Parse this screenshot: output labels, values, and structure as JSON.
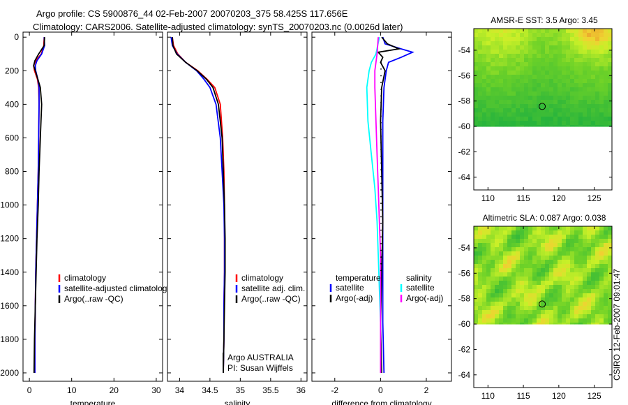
{
  "header": {
    "line1": "Argo profile: CS 5900876_44 02-Feb-2007 20070203_375 58.425S 117.656E",
    "line2": "Climatology: CARS2006. Satellite-adjusted climatology: synTS_20070203.nc (0.0026d later)"
  },
  "footer_stamp": "CSIRO 12-Feb-2007 09:01:47",
  "colors": {
    "clim": "#ff0000",
    "sat": "#0000ff",
    "argo": "#000000",
    "cyan": "#00ffff",
    "magenta": "#ff00ff"
  },
  "chart_data": [
    {
      "type": "line",
      "title": "temperature",
      "xlabel": "temperature",
      "ylabel": "",
      "xlim": [
        -1.5,
        31.5
      ],
      "ylim": [
        2050,
        -30
      ],
      "xticks": [
        0,
        10,
        20,
        30
      ],
      "yticks": [
        0,
        200,
        400,
        600,
        800,
        1000,
        1200,
        1400,
        1600,
        1800,
        2000
      ],
      "series": [
        {
          "name": "climatology",
          "color": "#ff0000",
          "x": [
            3.5,
            3.4,
            2.8,
            1.5,
            1.0,
            1.2,
            1.9,
            2.2,
            2.3,
            2.2,
            2.1,
            1.9,
            1.7,
            1.5,
            1.4,
            1.3,
            1.3
          ],
          "y": [
            0,
            50,
            100,
            140,
            170,
            200,
            250,
            300,
            400,
            600,
            800,
            1000,
            1200,
            1400,
            1600,
            1800,
            2000
          ]
        },
        {
          "name": "satellite-adjusted climatology",
          "color": "#0000ff",
          "x": [
            3.5,
            3.6,
            2.9,
            1.8,
            1.4,
            1.5,
            2.0,
            2.3,
            2.3,
            2.2,
            2.1,
            1.9,
            1.7,
            1.5,
            1.4,
            1.3,
            1.3
          ],
          "y": [
            0,
            50,
            100,
            140,
            170,
            200,
            250,
            300,
            400,
            600,
            800,
            1000,
            1200,
            1400,
            1600,
            1800,
            2000
          ]
        },
        {
          "name": "Argo(..raw -QC)",
          "color": "#000000",
          "x": [
            3.6,
            3.5,
            2.2,
            1.3,
            1.0,
            1.4,
            2.0,
            2.6,
            2.9,
            2.6,
            2.3,
            2.1,
            1.8,
            1.6,
            1.4,
            1.2,
            1.1
          ],
          "y": [
            0,
            50,
            100,
            140,
            170,
            200,
            250,
            300,
            400,
            600,
            800,
            1000,
            1200,
            1400,
            1600,
            1800,
            2000
          ]
        }
      ],
      "legend": {
        "location": "lower-right",
        "entries": [
          "climatology",
          "satellite-adjusted climatology",
          "Argo(..raw -QC)"
        ]
      }
    },
    {
      "type": "line",
      "title": "salinity",
      "xlabel": "salinity",
      "ylabel": "",
      "xlim": [
        33.8,
        36.1
      ],
      "ylim": [
        2050,
        -30
      ],
      "xticks": [
        34,
        34.5,
        35,
        35.5,
        36
      ],
      "xticklabels": [
        "34",
        "34.5",
        "35",
        "35.5",
        "36"
      ],
      "series": [
        {
          "name": "climatology",
          "color": "#ff0000",
          "x": [
            33.88,
            33.9,
            33.97,
            34.1,
            34.3,
            34.45,
            34.58,
            34.67,
            34.71,
            34.73,
            34.74,
            34.74,
            34.74,
            34.73,
            34.73,
            34.72
          ],
          "y": [
            0,
            50,
            100,
            150,
            200,
            250,
            300,
            400,
            600,
            800,
            1000,
            1200,
            1400,
            1600,
            1800,
            2000
          ]
        },
        {
          "name": "satellite adj. clim.",
          "color": "#0000ff",
          "x": [
            33.86,
            33.88,
            33.96,
            34.1,
            34.28,
            34.4,
            34.5,
            34.6,
            34.67,
            34.7,
            34.73,
            34.74,
            34.74,
            34.73,
            34.73,
            34.72
          ],
          "y": [
            0,
            50,
            100,
            150,
            200,
            250,
            300,
            400,
            600,
            800,
            1000,
            1200,
            1400,
            1600,
            1800,
            2000
          ]
        },
        {
          "name": "Argo(..raw -QC)",
          "color": "#000000",
          "x": [
            33.88,
            33.89,
            33.95,
            34.1,
            34.29,
            34.44,
            34.55,
            34.64,
            34.7,
            34.72,
            34.74,
            34.75,
            34.75,
            34.74,
            34.73,
            34.72
          ],
          "y": [
            0,
            50,
            100,
            150,
            200,
            250,
            300,
            400,
            600,
            800,
            1000,
            1200,
            1400,
            1600,
            1800,
            2000
          ]
        }
      ],
      "legend": {
        "location": "lower-right",
        "entries": [
          "climatology",
          "satellite adj. clim.",
          "Argo(..raw -QC)"
        ]
      },
      "annotation": [
        "Argo AUSTRALIA",
        "PI: Susan Wijffels"
      ]
    },
    {
      "type": "line",
      "title": "difference from climatology",
      "xlabel": "difference from climatology",
      "ylabel": "",
      "xlim": [
        -3,
        3.1
      ],
      "ylim": [
        2050,
        -30
      ],
      "xticks": [
        -2,
        0,
        2
      ],
      "series": [
        {
          "name": "temperature satellite",
          "color": "#0000ff",
          "x": [
            0.1,
            0.2,
            0.9,
            1.4,
            0.9,
            0.35,
            0.25,
            0.15,
            0.1,
            0.1,
            0.1,
            0.1,
            0.1,
            0.15
          ],
          "y": [
            0,
            40,
            70,
            90,
            120,
            150,
            200,
            300,
            500,
            800,
            1100,
            1400,
            1700,
            2000
          ]
        },
        {
          "name": "temperature Argo(-adj)",
          "color": "#000000",
          "x": [
            0.05,
            0.3,
            0.8,
            -0.1,
            0.1,
            0.0,
            0.2,
            0.05,
            0.0,
            0.05,
            0.1,
            0.05,
            0.0,
            0.05
          ],
          "y": [
            0,
            40,
            70,
            90,
            120,
            150,
            200,
            300,
            500,
            800,
            1100,
            1400,
            1700,
            2000
          ]
        },
        {
          "name": "salinity satellite",
          "color": "#00ffff",
          "x": [
            -0.05,
            -0.2,
            -0.4,
            -0.5,
            -0.6,
            -0.55,
            -0.4,
            -0.25,
            -0.15,
            -0.1,
            -0.05,
            0.0,
            0.0,
            0.0
          ],
          "y": [
            0,
            100,
            150,
            200,
            300,
            500,
            700,
            900,
            1100,
            1300,
            1500,
            1700,
            1900,
            2000
          ]
        },
        {
          "name": "salinity Argo(-adj)",
          "color": "#ff00ff",
          "x": [
            -0.1,
            -0.15,
            -0.2,
            -0.25,
            -0.25,
            -0.2,
            -0.15,
            -0.1,
            -0.05,
            0.0,
            0.0,
            0.0,
            0.0,
            0.0
          ],
          "y": [
            0,
            100,
            150,
            200,
            300,
            500,
            700,
            900,
            1100,
            1300,
            1500,
            1700,
            1900,
            2000
          ]
        }
      ],
      "legend": {
        "location": "lower-right",
        "temperature_heading": "temperature",
        "salinity_heading": "salinity",
        "entries": [
          "satellite",
          "Argo(-adj)",
          "satellite",
          "Argo(-adj)"
        ]
      }
    },
    {
      "type": "heatmap",
      "title": "AMSR-E SST: 3.5 Argo: 3.45",
      "xlim": [
        108,
        127.5
      ],
      "ylim": [
        -65,
        -52.3
      ],
      "xticks": [
        110,
        115,
        120,
        125
      ],
      "yticks": [
        -54,
        -56,
        -58,
        -60,
        -62,
        -64
      ],
      "data_coverage_lat": [
        -60,
        -52.3
      ],
      "marker": {
        "lon": 117.656,
        "lat": -58.425
      }
    },
    {
      "type": "heatmap",
      "title": "Altimetric SLA: 0.087 Argo: 0.038",
      "xlim": [
        108,
        127.5
      ],
      "ylim": [
        -65,
        -52.3
      ],
      "xticks": [
        110,
        115,
        120,
        125
      ],
      "yticks": [
        -54,
        -56,
        -58,
        -60,
        -62,
        -64
      ],
      "data_coverage_lat": [
        -60,
        -52.3
      ],
      "marker": {
        "lon": 117.656,
        "lat": -58.425
      }
    }
  ]
}
